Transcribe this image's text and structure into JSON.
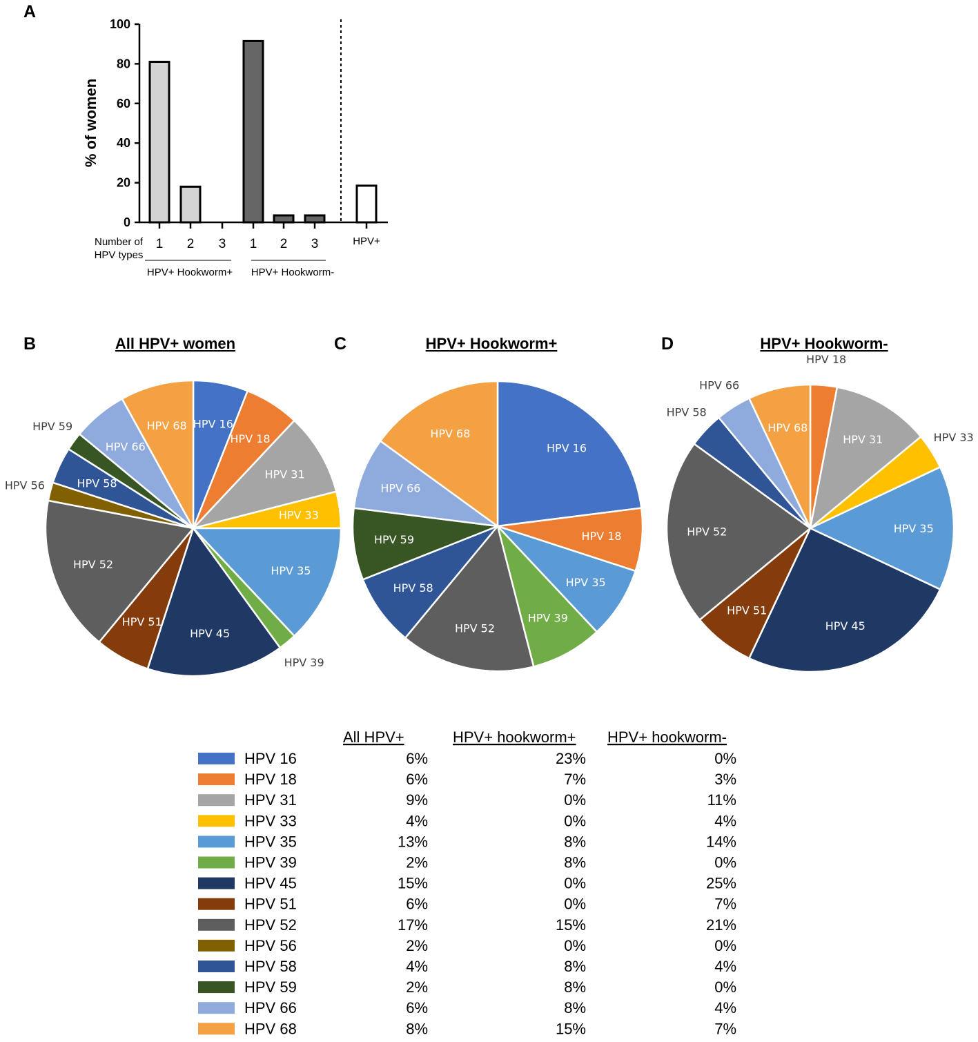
{
  "chart_data": [
    {
      "panel": "A",
      "type": "bar",
      "ylabel": "% of women",
      "ylim": [
        0,
        100
      ],
      "yticks": [
        "0",
        "20",
        "40",
        "60",
        "80",
        "100"
      ],
      "x_caption": "Number of HPV types",
      "groups": [
        {
          "name": "HPV+ Hookworm+",
          "color": "#d3d3d3",
          "categories": [
            "1",
            "2",
            "3"
          ],
          "values": [
            81,
            18,
            0
          ]
        },
        {
          "name": "HPV+ Hookworm-",
          "color": "#666666",
          "categories": [
            "1",
            "2",
            "3"
          ],
          "values": [
            91.5,
            3.5,
            3.5
          ]
        },
        {
          "name": "",
          "color": "#ffffff",
          "categories": [
            "HPV+"
          ],
          "values": [
            18.5
          ]
        }
      ]
    },
    {
      "panel": "B",
      "type": "pie",
      "title": "All HPV+ women",
      "slices": [
        {
          "label": "HPV 16",
          "value": 6
        },
        {
          "label": "HPV 18",
          "value": 6
        },
        {
          "label": "HPV 31",
          "value": 9
        },
        {
          "label": "HPV 33",
          "value": 4
        },
        {
          "label": "HPV 35",
          "value": 13
        },
        {
          "label": "HPV 39",
          "value": 2
        },
        {
          "label": "HPV 45",
          "value": 15
        },
        {
          "label": "HPV 51",
          "value": 6
        },
        {
          "label": "HPV 52",
          "value": 17
        },
        {
          "label": "HPV 56",
          "value": 2
        },
        {
          "label": "HPV 58",
          "value": 4
        },
        {
          "label": "HPV 59",
          "value": 2
        },
        {
          "label": "HPV 66",
          "value": 6
        },
        {
          "label": "HPV 68",
          "value": 8
        }
      ]
    },
    {
      "panel": "C",
      "type": "pie",
      "title": "HPV+ Hookworm+",
      "slices": [
        {
          "label": "HPV 16",
          "value": 23
        },
        {
          "label": "HPV 18",
          "value": 7
        },
        {
          "label": "HPV 35",
          "value": 8
        },
        {
          "label": "HPV 39",
          "value": 8
        },
        {
          "label": "HPV 52",
          "value": 15
        },
        {
          "label": "HPV 58",
          "value": 8
        },
        {
          "label": "HPV 59",
          "value": 8
        },
        {
          "label": "HPV 66",
          "value": 8
        },
        {
          "label": "HPV 68",
          "value": 15
        }
      ]
    },
    {
      "panel": "D",
      "type": "pie",
      "title": "HPV+ Hookworm-",
      "slices": [
        {
          "label": "HPV 18",
          "value": 3
        },
        {
          "label": "HPV 31",
          "value": 11
        },
        {
          "label": "HPV 33",
          "value": 4
        },
        {
          "label": "HPV 35",
          "value": 14
        },
        {
          "label": "HPV 45",
          "value": 25
        },
        {
          "label": "HPV 51",
          "value": 7
        },
        {
          "label": "HPV 52",
          "value": 21
        },
        {
          "label": "HPV 58",
          "value": 4
        },
        {
          "label": "HPV 66",
          "value": 4
        },
        {
          "label": "HPV 68",
          "value": 7
        }
      ]
    },
    {
      "type": "table",
      "columns": [
        "All HPV+",
        "HPV+ hookworm+",
        "HPV+ hookworm-"
      ],
      "rows": [
        {
          "label": "HPV 16",
          "color": "#4472c4",
          "values": [
            "6%",
            "23%",
            "0%"
          ]
        },
        {
          "label": "HPV 18",
          "color": "#ed7d31",
          "values": [
            "6%",
            "7%",
            "3%"
          ]
        },
        {
          "label": "HPV 31",
          "color": "#a5a5a5",
          "values": [
            "9%",
            "0%",
            "11%"
          ]
        },
        {
          "label": "HPV 33",
          "color": "#ffc000",
          "values": [
            "4%",
            "0%",
            "4%"
          ]
        },
        {
          "label": "HPV 35",
          "color": "#5b9bd5",
          "values": [
            "13%",
            "8%",
            "14%"
          ]
        },
        {
          "label": "HPV 39",
          "color": "#70ad47",
          "values": [
            "2%",
            "8%",
            "0%"
          ]
        },
        {
          "label": "HPV 45",
          "color": "#1f3864",
          "values": [
            "15%",
            "0%",
            "25%"
          ]
        },
        {
          "label": "HPV 51",
          "color": "#843c0c",
          "values": [
            "6%",
            "0%",
            "7%"
          ]
        },
        {
          "label": "HPV 52",
          "color": "#5e5e5e",
          "values": [
            "17%",
            "15%",
            "21%"
          ]
        },
        {
          "label": "HPV 56",
          "color": "#806000",
          "values": [
            "2%",
            "0%",
            "0%"
          ]
        },
        {
          "label": "HPV 58",
          "color": "#2f5597",
          "values": [
            "4%",
            "8%",
            "4%"
          ]
        },
        {
          "label": "HPV 59",
          "color": "#375623",
          "values": [
            "2%",
            "8%",
            "0%"
          ]
        },
        {
          "label": "HPV 66",
          "color": "#8faadc",
          "values": [
            "6%",
            "8%",
            "4%"
          ]
        },
        {
          "label": "HPV 68",
          "color": "#f4a144",
          "values": [
            "8%",
            "15%",
            "7%"
          ]
        }
      ]
    }
  ],
  "panel_labels": {
    "a": "A",
    "b": "B",
    "c": "C",
    "d": "D"
  },
  "bar_axis": {
    "ylabel": "% of women",
    "caption_line1": "Number of",
    "caption_line2": "HPV types",
    "group1": "HPV+ Hookworm+",
    "group2": "HPV+ Hookworm-"
  },
  "pie_titles": {
    "b": "All HPV+ women",
    "c": "HPV+ Hookworm+",
    "d": "HPV+ Hookworm-"
  }
}
